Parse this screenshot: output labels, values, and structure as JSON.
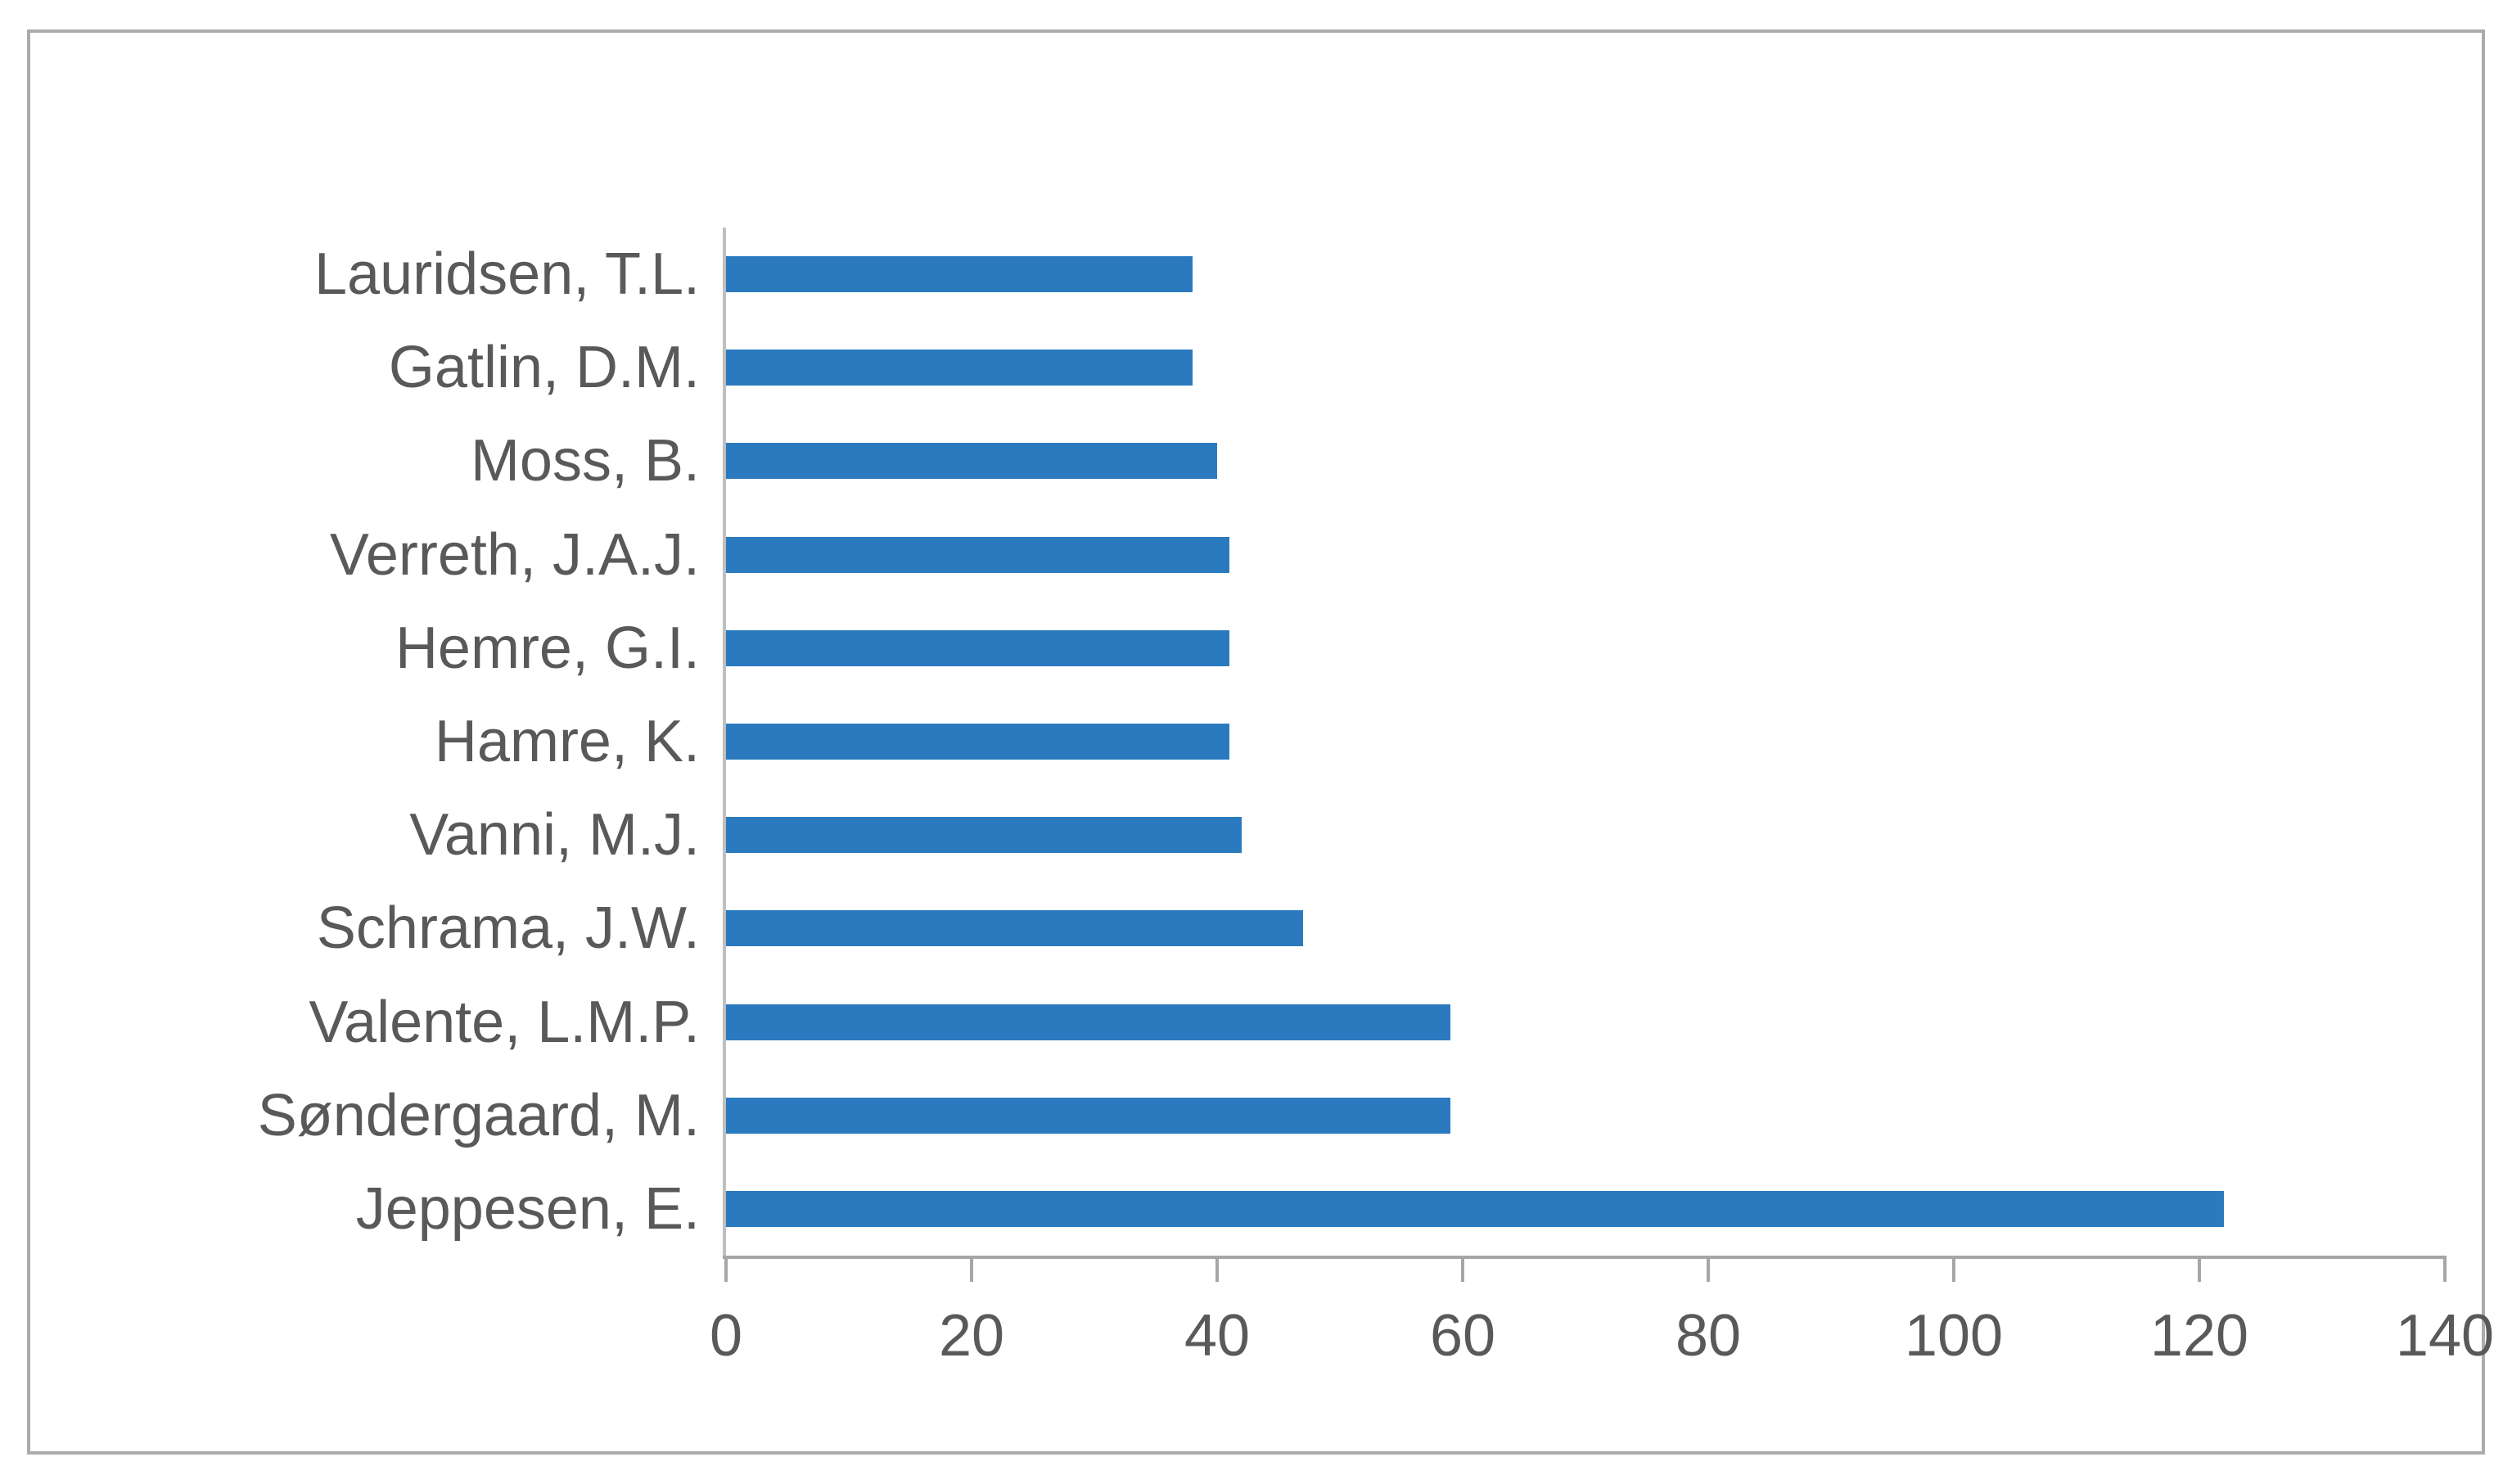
{
  "chart_data": {
    "type": "bar",
    "orientation": "horizontal",
    "title": "",
    "xlabel": "",
    "ylabel": "",
    "categories": [
      "Lauridsen, T.L.",
      "Gatlin, D.M.",
      "Moss, B.",
      "Verreth, J.A.J.",
      "Hemre, G.I.",
      "Hamre, K.",
      "Vanni, M.J.",
      "Schrama, J.W.",
      "Valente, L.M.P.",
      "Søndergaard, M.",
      "Jeppesen, E."
    ],
    "values": [
      38,
      38,
      40,
      41,
      41,
      41,
      42,
      47,
      59,
      59,
      122
    ],
    "xlim": [
      0,
      140
    ],
    "xticks": [
      0,
      20,
      40,
      60,
      80,
      100,
      120,
      140
    ],
    "grid": false,
    "legend": false,
    "style": {
      "bar_color": "#2b7abf",
      "value_axis_line_color": "#a6a6a6",
      "category_axis_line_color": "#bfbfbf",
      "text_color": "#595959",
      "frame_border_color": "#ababab",
      "background_color": "#ffffff"
    }
  }
}
